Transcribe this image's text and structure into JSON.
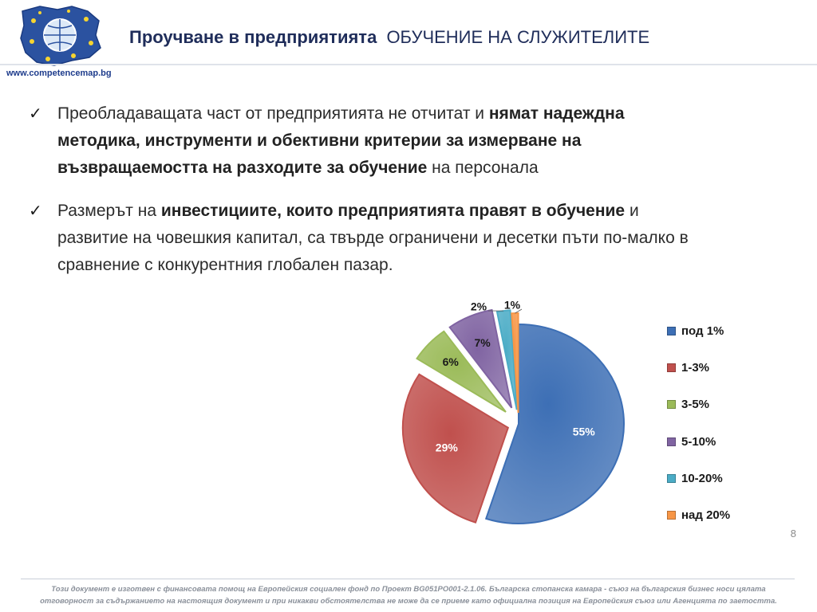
{
  "header": {
    "title_bold": "Проучване в предприятията",
    "title_caps": "ОБУЧЕНИЕ НА СЛУЖИТЕЛИТЕ",
    "website": "www.competencemap.bg"
  },
  "bullets": [
    {
      "check": "✓",
      "parts": [
        {
          "text": "Преобладаващата част от предприятията не отчитат и ",
          "bold": false
        },
        {
          "text": "нямат надеждна методика, инструменти и обективни критерии за измерване на възвращаемостта на разходите за обучение",
          "bold": true
        },
        {
          "text": " на персонала",
          "bold": false
        }
      ]
    },
    {
      "check": "✓",
      "parts": [
        {
          "text": "Размерът на ",
          "bold": false
        },
        {
          "text": "инвестициите, които предприятията правят в обучение",
          "bold": true
        },
        {
          "text": " и развитие на човешкия капитал, са твърде ограничени и десетки пъти по-малко в сравнение с конкурентния глобален пазар.",
          "bold": false
        }
      ]
    }
  ],
  "chart_data": {
    "type": "pie",
    "title": "",
    "legend_position": "right",
    "categories": [
      "под 1%",
      "1-3%",
      "3-5%",
      "5-10%",
      "10-20%",
      "над 20%"
    ],
    "values": [
      55,
      29,
      6,
      7,
      2,
      1
    ],
    "labels": [
      "55%",
      "29%",
      "6%",
      "7%",
      "2%",
      "1%"
    ],
    "colors": [
      "#3d6fb5",
      "#c0504d",
      "#9bbb59",
      "#8064a2",
      "#4bacc6",
      "#f79646"
    ]
  },
  "page_number": "8",
  "footer": {
    "line1": "Този документ е изготвен с финансовата помощ на Европейския социален фонд по Проект BG051PO001-2.1.06. Българска стопанска камара - съюз на българския бизнес носи цялата",
    "line2": "отговорност за съдържанието на настоящия документ и при никакви обстоятелства не може да се приеме като официална позиция на Европейския съюз или Агенцията по заетостта."
  }
}
